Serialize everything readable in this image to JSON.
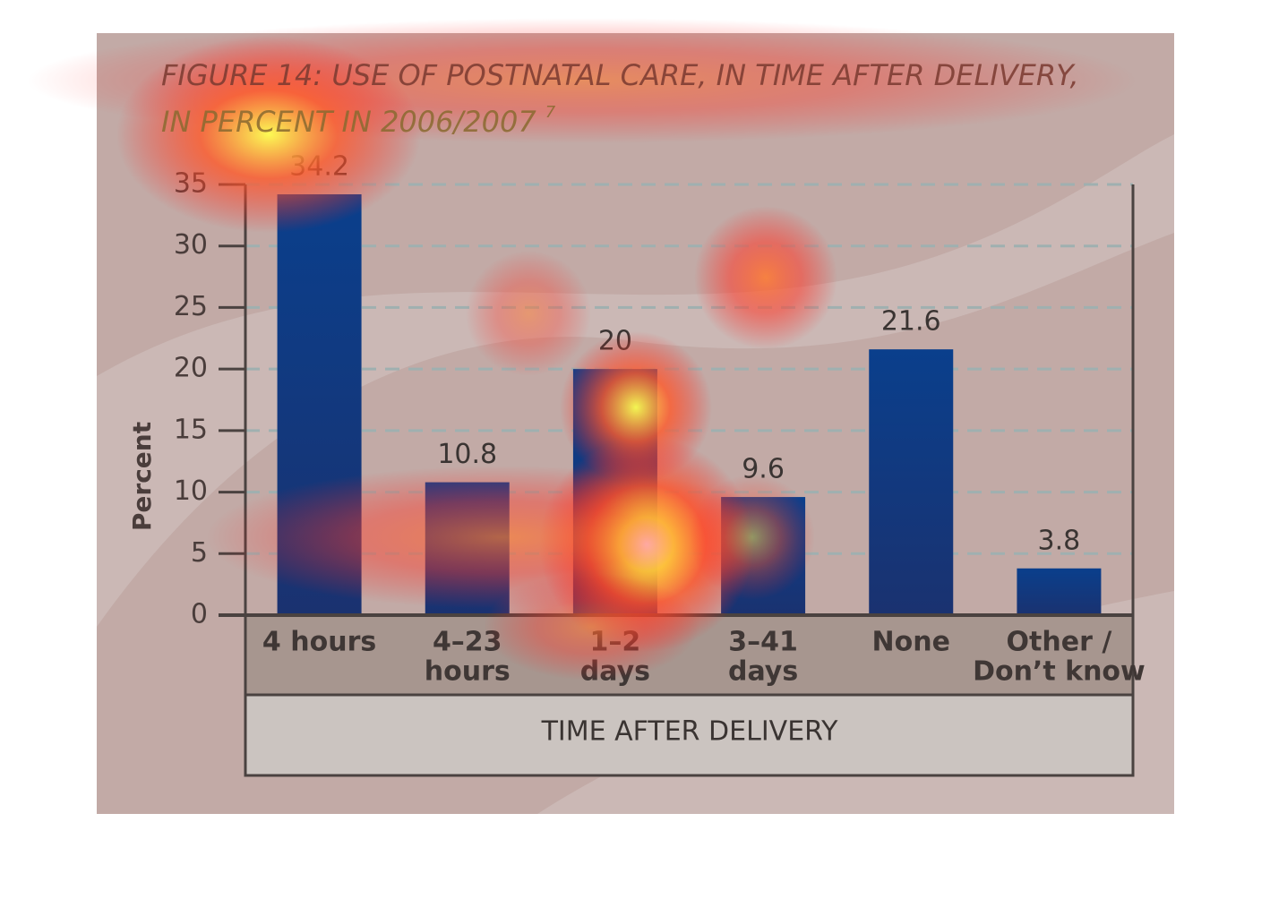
{
  "chart_data": {
    "type": "bar",
    "title": [
      "FIGURE 14: USE OF POSTNATAL CARE, IN TIME AFTER DELIVERY,",
      "IN PERCENT IN 2006/2007"
    ],
    "footnote_marker": "7",
    "y_label": "Percent",
    "x_label": "TIME AFTER DELIVERY",
    "categories": [
      [
        "4 hours"
      ],
      [
        "4–23",
        "hours"
      ],
      [
        "1–2",
        "days"
      ],
      [
        "3–41",
        "days"
      ],
      [
        "None"
      ],
      [
        "Other /",
        "Don’t know"
      ]
    ],
    "values": [
      34.2,
      10.8,
      20,
      9.6,
      21.6,
      3.8
    ],
    "color": "#0a3d85",
    "ylim": [
      0,
      35
    ],
    "yticks": [
      0,
      5,
      10,
      15,
      20,
      25,
      30,
      35
    ],
    "grid": true
  }
}
